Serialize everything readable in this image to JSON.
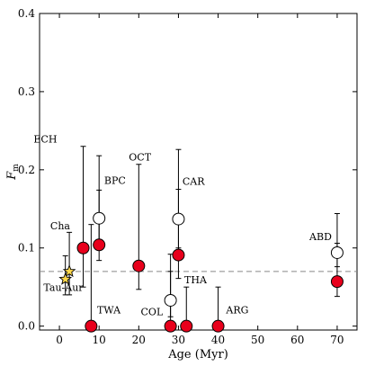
{
  "chart_data": {
    "type": "scatter",
    "xlabel": "Age (Myr)",
    "ylabel": "F",
    "ylabel_sub": "m",
    "xlim": [
      -5,
      75
    ],
    "ylim": [
      -0.005,
      0.4
    ],
    "xticks": [
      0,
      10,
      20,
      30,
      40,
      50,
      60,
      70
    ],
    "yticks": [
      0.0,
      0.1,
      0.2,
      0.3,
      0.4
    ],
    "ytick_labels": [
      "0.0",
      "0.1",
      "0.2",
      "0.3",
      "0.4"
    ],
    "reference_line": {
      "y": 0.07,
      "style": "dashed",
      "color": "#888888"
    },
    "colors": {
      "red_fill": "#e8001c",
      "open_fill": "#ffffff",
      "star_fill": "#ffd84a"
    },
    "groups": [
      {
        "label": "ECH",
        "x": 6.0,
        "y": 0.1,
        "yerr_low": 0.05,
        "yerr_high": 0.23,
        "marker": "red"
      },
      {
        "label": "BPC",
        "x": 10.0,
        "y": 0.104,
        "yerr_low": 0.084,
        "yerr_high": 0.174,
        "marker": "red"
      },
      {
        "label": "",
        "x": 10.0,
        "y": 0.138,
        "yerr_low": 0.1,
        "yerr_high": 0.218,
        "marker": "open"
      },
      {
        "label": "TWA",
        "x": 8.0,
        "y": 0.0,
        "yerr_low": 0.0,
        "yerr_high": 0.13,
        "marker": "red"
      },
      {
        "label": "OCT",
        "x": 20.0,
        "y": 0.077,
        "yerr_low": 0.047,
        "yerr_high": 0.207,
        "marker": "red"
      },
      {
        "label": "CAR",
        "x": 30.0,
        "y": 0.091,
        "yerr_low": 0.061,
        "yerr_high": 0.175,
        "marker": "red"
      },
      {
        "label": "",
        "x": 30.0,
        "y": 0.137,
        "yerr_low": 0.1,
        "yerr_high": 0.226,
        "marker": "open"
      },
      {
        "label": "COL",
        "x": 28.0,
        "y": 0.0,
        "yerr_low": 0.0,
        "yerr_high": 0.07,
        "marker": "red"
      },
      {
        "label": "",
        "x": 28.0,
        "y": 0.033,
        "yerr_low": 0.012,
        "yerr_high": 0.092,
        "marker": "open"
      },
      {
        "label": "THA",
        "x": 32.0,
        "y": 0.0,
        "yerr_low": 0.0,
        "yerr_high": 0.05,
        "marker": "red"
      },
      {
        "label": "ARG",
        "x": 40.0,
        "y": 0.0,
        "yerr_low": 0.0,
        "yerr_high": 0.05,
        "marker": "red"
      },
      {
        "label": "ABD",
        "x": 70.0,
        "y": 0.057,
        "yerr_low": 0.038,
        "yerr_high": 0.106,
        "marker": "red"
      },
      {
        "label": "",
        "x": 70.0,
        "y": 0.094,
        "yerr_low": 0.076,
        "yerr_high": 0.144,
        "marker": "open"
      },
      {
        "label": "Cha",
        "x": 2.5,
        "y": 0.07,
        "yerr_low": 0.04,
        "yerr_high": 0.12,
        "marker": "star"
      },
      {
        "label": "Tau-Aur",
        "x": 1.5,
        "y": 0.06,
        "yerr_low": 0.04,
        "yerr_high": 0.09,
        "marker": "star"
      }
    ],
    "label_positions": {
      "ECH": [
        -6.5,
        0.235
      ],
      "BPC": [
        11.3,
        0.182
      ],
      "TWA": [
        9.5,
        0.016
      ],
      "OCT": [
        17.5,
        0.212
      ],
      "CAR": [
        31.0,
        0.181
      ],
      "COL": [
        20.5,
        0.014
      ],
      "THA": [
        31.5,
        0.055
      ],
      "ARG": [
        42.0,
        0.016
      ],
      "ABD": [
        63.0,
        0.11
      ],
      "Cha": [
        -2.3,
        0.124
      ],
      "Tau-Aur": [
        -4.0,
        0.045
      ]
    }
  }
}
